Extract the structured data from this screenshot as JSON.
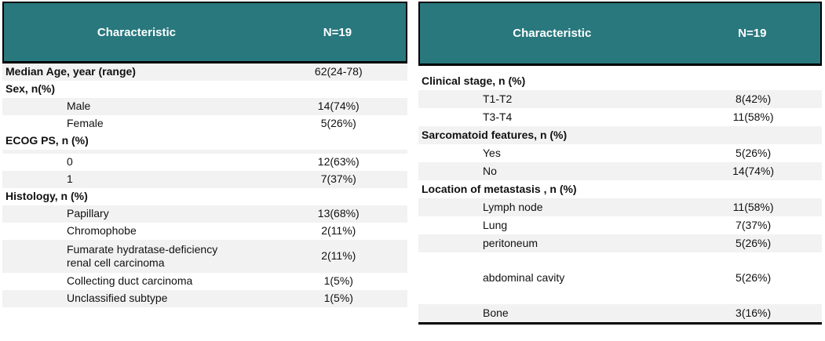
{
  "colors": {
    "header_bg": "#28787E",
    "header_text": "#FFFFFF",
    "row_alt": "#F2F2F2",
    "border": "#000000",
    "text": "#111111"
  },
  "tables": [
    {
      "id": "patient-characteristics-left",
      "header": {
        "characteristic": "Characteristic",
        "n": "N=19"
      },
      "rows": [
        {
          "kind": "section",
          "label": "Median Age, year (range)",
          "value": "62(24-78)",
          "shaded": true
        },
        {
          "kind": "section",
          "label": "Sex, n(%)",
          "value": "",
          "shaded": false
        },
        {
          "kind": "item",
          "label": "Male",
          "value": "14(74%)",
          "shaded": true
        },
        {
          "kind": "item",
          "label": "Female",
          "value": "5(26%)",
          "shaded": false
        },
        {
          "kind": "section",
          "label": "ECOG PS, n (%)",
          "value": "",
          "shaded": false
        },
        {
          "kind": "spacer",
          "shaded": true,
          "height": 5
        },
        {
          "kind": "item",
          "label": "0",
          "value": "12(63%)",
          "shaded": false
        },
        {
          "kind": "item",
          "label": "1",
          "value": "7(37%)",
          "shaded": true
        },
        {
          "kind": "section",
          "label": "Histology, n (%)",
          "value": "",
          "shaded": false
        },
        {
          "kind": "item",
          "label": "Papillary",
          "value": "13(68%)",
          "shaded": true
        },
        {
          "kind": "item",
          "label": "Chromophobe",
          "value": "2(11%)",
          "shaded": false
        },
        {
          "kind": "item",
          "label": "Fumarate hydratase-deficiency\nrenal cell carcinoma",
          "value": "2(11%)",
          "shaded": true,
          "height": 42
        },
        {
          "kind": "item",
          "label": "Collecting duct carcinoma",
          "value": "1(5%)",
          "shaded": false
        },
        {
          "kind": "item",
          "label": "Unclassified subtype",
          "value": "1(5%)",
          "shaded": true
        }
      ]
    },
    {
      "id": "patient-characteristics-right",
      "header": {
        "characteristic": "Characteristic",
        "n": "N=19"
      },
      "rows": [
        {
          "kind": "spacer",
          "shaded": false,
          "height": 8
        },
        {
          "kind": "section",
          "label": "Clinical stage, n (%)",
          "value": "",
          "shaded": false
        },
        {
          "kind": "item",
          "label": "T1-T2",
          "value": "8(42%)",
          "shaded": true
        },
        {
          "kind": "item",
          "label": "T3-T4",
          "value": "11(58%)",
          "shaded": false
        },
        {
          "kind": "section",
          "label": "Sarcomatoid features, n (%)",
          "value": "",
          "shaded": true
        },
        {
          "kind": "item",
          "label": "Yes",
          "value": "5(26%)",
          "shaded": false
        },
        {
          "kind": "item",
          "label": "No",
          "value": "14(74%)",
          "shaded": true
        },
        {
          "kind": "section",
          "label": "Location of metastasis , n (%)",
          "value": "",
          "shaded": false
        },
        {
          "kind": "item",
          "label": "Lymph node",
          "value": "11(58%)",
          "shaded": true
        },
        {
          "kind": "item",
          "label": "Lung",
          "value": "7(37%)",
          "shaded": false
        },
        {
          "kind": "item",
          "label": "peritoneum",
          "value": "5(26%)",
          "shaded": true
        },
        {
          "kind": "spacer",
          "shaded": false,
          "height": 10
        },
        {
          "kind": "item",
          "label": "abdominal cavity",
          "value": "5(26%)",
          "shaded": false,
          "height": 46
        },
        {
          "kind": "spacer",
          "shaded": false,
          "height": 10
        },
        {
          "kind": "item",
          "label": "Bone",
          "value": "3(16%)",
          "shaded": true
        }
      ]
    }
  ]
}
